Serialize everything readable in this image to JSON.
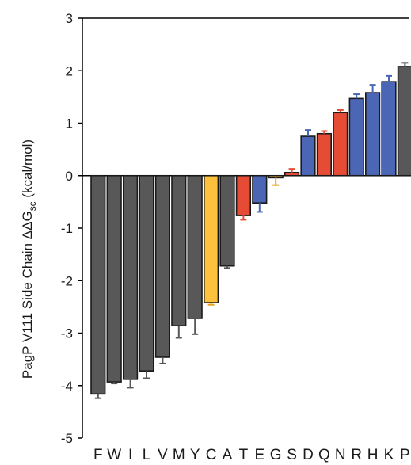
{
  "chart_data": {
    "type": "bar",
    "ylabel": {
      "prefix": "PagP V111 Side Chain ΔΔG",
      "subscript": "sc",
      "suffix": " (kcal/mol)"
    },
    "ylim": [
      -5,
      3
    ],
    "yticks": [
      "-5",
      "-4",
      "-3",
      "-2",
      "-1",
      "0",
      "1",
      "2",
      "3"
    ],
    "grid": false,
    "categories": [
      "F",
      "W",
      "I",
      "L",
      "V",
      "M",
      "Y",
      "C",
      "A",
      "T",
      "E",
      "G",
      "S",
      "D",
      "Q",
      "N",
      "R",
      "H",
      "K",
      "P"
    ],
    "values": [
      -4.16,
      -3.93,
      -3.88,
      -3.72,
      -3.46,
      -2.86,
      -2.72,
      -2.42,
      -1.72,
      -0.76,
      -0.52,
      -0.04,
      0.06,
      0.75,
      0.8,
      1.2,
      1.47,
      1.58,
      1.79,
      2.08
    ],
    "errors": [
      0.08,
      0.03,
      0.16,
      0.14,
      0.12,
      0.23,
      0.3,
      0.04,
      0.04,
      0.08,
      0.17,
      0.14,
      0.07,
      0.12,
      0.05,
      0.05,
      0.08,
      0.15,
      0.11,
      0.07
    ],
    "bar_colors": [
      "#585858",
      "#585858",
      "#585858",
      "#585858",
      "#585858",
      "#585858",
      "#585858",
      "#fdc13e",
      "#585858",
      "#e64b35",
      "#4a66b4",
      "#fdc13e",
      "#e64b35",
      "#4a66b4",
      "#e64b35",
      "#e64b35",
      "#4a66b4",
      "#4a66b4",
      "#4a66b4",
      "#585858"
    ],
    "error_colors": [
      "#585858",
      "#585858",
      "#585858",
      "#585858",
      "#585858",
      "#585858",
      "#585858",
      "#e8a21c",
      "#585858",
      "#e64b35",
      "#4a66b4",
      "#e8a21c",
      "#e64b35",
      "#4a66b4",
      "#e64b35",
      "#e64b35",
      "#4a66b4",
      "#4a66b4",
      "#4a66b4",
      "#585858"
    ]
  }
}
